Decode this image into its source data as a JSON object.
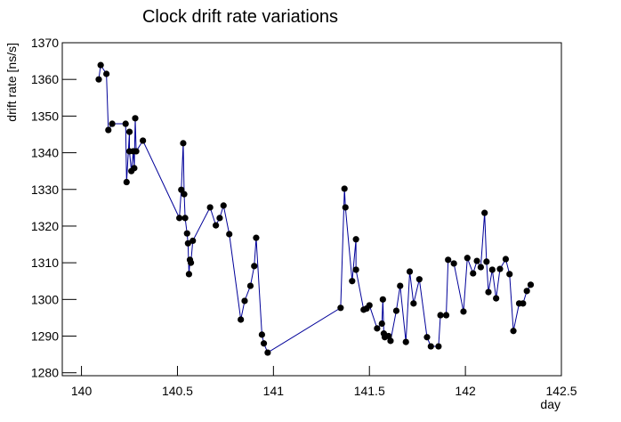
{
  "chart_data": {
    "type": "line",
    "title": "Clock drift rate variations",
    "xlabel": "day",
    "ylabel": "drift rate [ns/s]",
    "xlim": [
      139.9,
      142.5
    ],
    "ylim": [
      1279.2,
      1370
    ],
    "xticks": [
      140,
      140.5,
      141,
      141.5,
      142,
      142.5
    ],
    "yticks": [
      1280,
      1290,
      1300,
      1310,
      1320,
      1330,
      1340,
      1350,
      1360,
      1370
    ],
    "series": [
      {
        "name": "drift",
        "color": "#000099",
        "marker_color": "#000000",
        "x": [
          140.09,
          140.1,
          140.13,
          140.14,
          140.16,
          140.23,
          140.235,
          140.25,
          140.25,
          140.26,
          140.27,
          140.275,
          140.28,
          140.285,
          140.32,
          140.51,
          140.52,
          140.53,
          140.535,
          140.54,
          140.55,
          140.555,
          140.56,
          140.565,
          140.57,
          140.58,
          140.67,
          140.7,
          140.72,
          140.74,
          140.77,
          140.83,
          140.85,
          140.88,
          140.9,
          140.91,
          140.94,
          140.95,
          140.97,
          141.35,
          141.37,
          141.375,
          141.41,
          141.43,
          141.43,
          141.47,
          141.485,
          141.5,
          141.54,
          141.565,
          141.57,
          141.575,
          141.58,
          141.6,
          141.61,
          141.64,
          141.66,
          141.69,
          141.71,
          141.73,
          141.76,
          141.8,
          141.82,
          141.86,
          141.87,
          141.9,
          141.91,
          141.94,
          141.99,
          142.01,
          142.04,
          142.06,
          142.08,
          142.1,
          142.11,
          142.12,
          142.14,
          142.16,
          142.18,
          142.21,
          142.23,
          142.25,
          142.28,
          142.3,
          142.32,
          142.34
        ],
        "values": [
          1360,
          1363.9,
          1361.5,
          1346.2,
          1347.9,
          1347.9,
          1332,
          1345.7,
          1340.4,
          1335,
          1340.4,
          1335.8,
          1349.4,
          1340.4,
          1343.3,
          1322.2,
          1329.9,
          1342.6,
          1328.7,
          1322.2,
          1318,
          1315.3,
          1306.9,
          1310.8,
          1310,
          1316,
          1325.1,
          1320.2,
          1322.2,
          1325.6,
          1317.8,
          1294.5,
          1299.6,
          1303.7,
          1309.1,
          1316.8,
          1290.4,
          1288,
          1285.5,
          1297.7,
          1330.2,
          1325.1,
          1305,
          1316.4,
          1308.1,
          1297.2,
          1297.5,
          1298.4,
          1292.1,
          1293.4,
          1300,
          1290.7,
          1289.7,
          1290,
          1288.7,
          1296.9,
          1303.7,
          1288.4,
          1307.6,
          1298.9,
          1305.5,
          1289.7,
          1287.2,
          1287.2,
          1295.7,
          1295.7,
          1310.8,
          1309.8,
          1296.7,
          1311.3,
          1307.1,
          1310.5,
          1308.8,
          1323.6,
          1310.3,
          1302,
          1308.1,
          1300.3,
          1308.3,
          1311,
          1306.9,
          1291.4,
          1298.9,
          1298.9,
          1302.3,
          1304
        ]
      }
    ]
  }
}
